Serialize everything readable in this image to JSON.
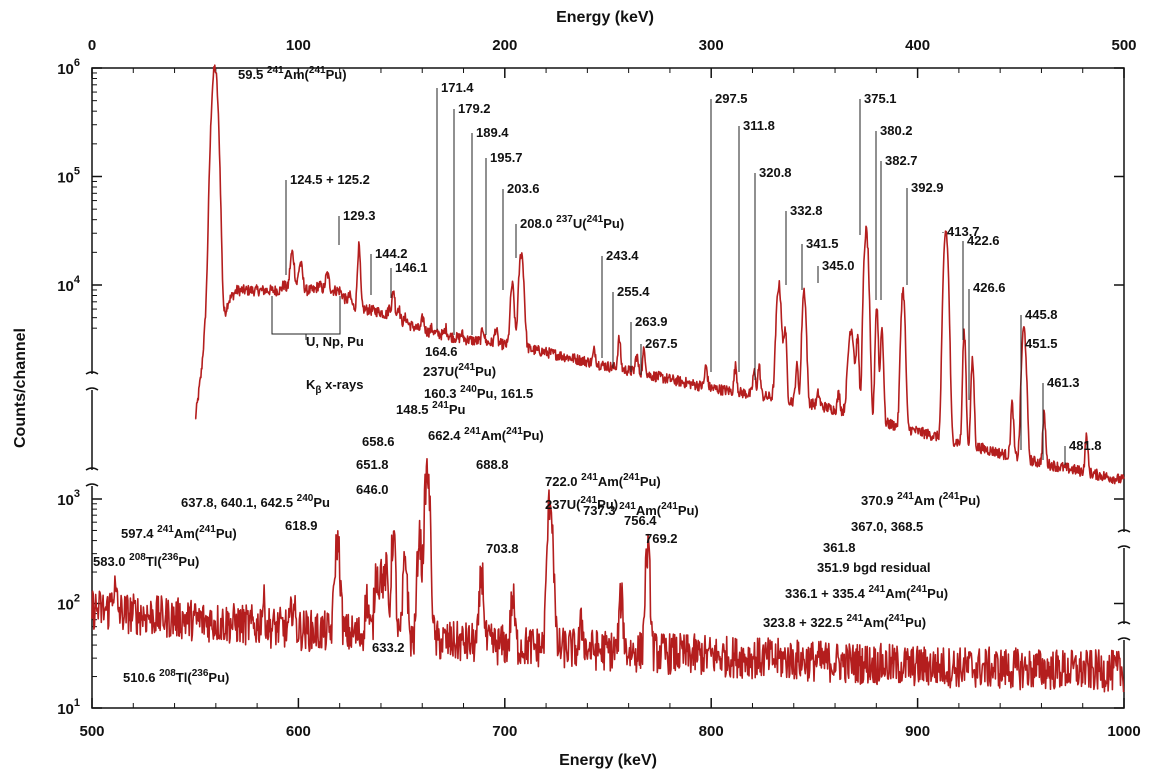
{
  "chart_data": {
    "type": "line",
    "title": "",
    "top_axis": {
      "label": "Energy (keV)",
      "range": [
        0,
        500
      ],
      "ticks": [
        {
          "v": 0,
          "t": "0"
        },
        {
          "v": 100,
          "t": "100"
        },
        {
          "v": 200,
          "t": "200"
        },
        {
          "v": 300,
          "t": "300"
        },
        {
          "v": 400,
          "t": "400"
        },
        {
          "v": 500,
          "t": "500"
        }
      ]
    },
    "bottom_axis": {
      "label": "Energy (keV)",
      "range": [
        500,
        1000
      ],
      "ticks": [
        {
          "v": 500,
          "t": "500"
        },
        {
          "v": 600,
          "t": "600"
        },
        {
          "v": 700,
          "t": "700"
        },
        {
          "v": 800,
          "t": "800"
        },
        {
          "v": 900,
          "t": "900"
        },
        {
          "v": 1000,
          "t": "1000"
        }
      ]
    },
    "ylabel": "Counts/channel",
    "y_scale": "log",
    "upper_y_ticks": [
      {
        "exp": 4,
        "t": "10",
        "sup": "4"
      },
      {
        "exp": 5,
        "t": "10",
        "sup": "5"
      },
      {
        "exp": 6,
        "t": "10",
        "sup": "6"
      }
    ],
    "lower_y_ticks": [
      {
        "exp": 1,
        "t": "10",
        "sup": "1"
      },
      {
        "exp": 2,
        "t": "10",
        "sup": "2"
      },
      {
        "exp": 3,
        "t": "10",
        "sup": "3"
      }
    ],
    "line_color": "#b41e1e",
    "series": [
      {
        "range": "0-500 keV",
        "continuum": [
          [
            50,
            2.75
          ],
          [
            53,
            3.2
          ],
          [
            56,
            3.9
          ],
          [
            58,
            4.7
          ],
          [
            60,
            3.7
          ],
          [
            62,
            3.55
          ],
          [
            66,
            3.85
          ],
          [
            70,
            3.95
          ],
          [
            75,
            3.95
          ],
          [
            80,
            3.95
          ],
          [
            90,
            3.95
          ],
          [
            100,
            3.95
          ],
          [
            120,
            3.95
          ],
          [
            125,
            3.8
          ],
          [
            140,
            3.75
          ],
          [
            160,
            3.58
          ],
          [
            180,
            3.5
          ],
          [
            200,
            3.45
          ],
          [
            220,
            3.38
          ],
          [
            250,
            3.25
          ],
          [
            300,
            3.05
          ],
          [
            350,
            2.9
          ],
          [
            400,
            2.65
          ],
          [
            450,
            2.4
          ],
          [
            500,
            2.2
          ]
        ],
        "peaks": [
          [
            59.5,
            6.0,
            1.2
          ],
          [
            93,
            4.0,
            0.8
          ],
          [
            97,
            4.3,
            0.9
          ],
          [
            101,
            4.2,
            0.9
          ],
          [
            106,
            3.9,
            0.7
          ],
          [
            110,
            4.0,
            1.0
          ],
          [
            114,
            4.1,
            0.8
          ],
          [
            118,
            3.9,
            0.8
          ],
          [
            124.8,
            3.9,
            0.8
          ],
          [
            129.3,
            4.35,
            0.6
          ],
          [
            144.2,
            3.8,
            0.6
          ],
          [
            146.1,
            3.95,
            0.6
          ],
          [
            148.5,
            3.8,
            0.6
          ],
          [
            152,
            3.7,
            0.6
          ],
          [
            160.3,
            3.7,
            0.6
          ],
          [
            164.6,
            3.6,
            0.6
          ],
          [
            171.4,
            3.6,
            0.6
          ],
          [
            179.2,
            3.55,
            0.6
          ],
          [
            189.4,
            3.6,
            0.6
          ],
          [
            195.7,
            3.6,
            0.6
          ],
          [
            203.6,
            4.0,
            0.8
          ],
          [
            208.0,
            4.3,
            1.0
          ],
          [
            243.4,
            3.4,
            0.6
          ],
          [
            255.4,
            3.5,
            0.6
          ],
          [
            263.9,
            3.35,
            0.6
          ],
          [
            267.5,
            3.4,
            0.6
          ],
          [
            297.5,
            3.25,
            0.6
          ],
          [
            311.8,
            3.25,
            0.6
          ],
          [
            320.8,
            3.2,
            0.6
          ],
          [
            323.2,
            3.25,
            0.6
          ],
          [
            332.8,
            4.0,
            1.0
          ],
          [
            335.8,
            3.6,
            0.6
          ],
          [
            341.5,
            3.25,
            0.6
          ],
          [
            345.0,
            3.95,
            0.8
          ],
          [
            351.9,
            3.0,
            0.6
          ],
          [
            361.8,
            3.0,
            0.6
          ],
          [
            367.8,
            3.6,
            1.2
          ],
          [
            370.9,
            3.5,
            0.6
          ],
          [
            375.1,
            4.5,
            0.9
          ],
          [
            380.2,
            3.8,
            0.6
          ],
          [
            382.7,
            3.6,
            0.6
          ],
          [
            392.9,
            3.95,
            0.8
          ],
          [
            413.7,
            4.5,
            0.9
          ],
          [
            422.6,
            3.55,
            0.6
          ],
          [
            426.6,
            3.3,
            0.6
          ],
          [
            445.8,
            2.9,
            0.6
          ],
          [
            451.5,
            3.6,
            0.9
          ],
          [
            461.3,
            2.8,
            0.6
          ],
          [
            481.8,
            2.6,
            0.6
          ]
        ],
        "noise_amplitude": 0.05
      },
      {
        "range": "500-1000 keV",
        "continuum": [
          [
            500,
            1.95
          ],
          [
            520,
            1.9
          ],
          [
            560,
            1.82
          ],
          [
            600,
            1.75
          ],
          [
            660,
            1.65
          ],
          [
            700,
            1.6
          ],
          [
            800,
            1.5
          ],
          [
            900,
            1.4
          ],
          [
            1000,
            1.35
          ]
        ],
        "peaks": [
          [
            510.6,
            2.15,
            1.0
          ],
          [
            583.0,
            2.0,
            0.8
          ],
          [
            597.4,
            2.0,
            0.8
          ],
          [
            618.9,
            2.6,
            1.0
          ],
          [
            633.2,
            2.05,
            0.8
          ],
          [
            637.8,
            2.3,
            0.8
          ],
          [
            640.1,
            2.3,
            0.8
          ],
          [
            642.5,
            2.3,
            0.8
          ],
          [
            646.0,
            2.65,
            0.8
          ],
          [
            651.8,
            2.45,
            0.8
          ],
          [
            658.6,
            2.65,
            0.8
          ],
          [
            662.4,
            3.25,
            1.0
          ],
          [
            688.8,
            2.3,
            0.8
          ],
          [
            703.8,
            2.05,
            0.8
          ],
          [
            722.0,
            3.0,
            1.0
          ],
          [
            737.3,
            1.8,
            0.8
          ],
          [
            756.4,
            2.05,
            0.8
          ],
          [
            769.2,
            2.5,
            0.9
          ]
        ],
        "noise_amplitude": 0.2
      }
    ],
    "annotations": [
      {
        "text": "59.5 ",
        "sup": "241",
        "rest": "Am(",
        "sup2": "241",
        "rest2": "Pu)",
        "panel": "top",
        "energy": 59.5
      },
      {
        "text": "124.5 + 125.2",
        "panel": "top",
        "energy": 124.8
      },
      {
        "text": "129.3",
        "panel": "top",
        "energy": 129.3
      },
      {
        "text": "144.2",
        "panel": "top",
        "energy": 144.2
      },
      {
        "text": "146.1",
        "panel": "top",
        "energy": 146.1
      },
      {
        "text": "171.4",
        "panel": "top",
        "energy": 171.4
      },
      {
        "text": "179.2",
        "panel": "top",
        "energy": 179.2
      },
      {
        "text": "189.4",
        "panel": "top",
        "energy": 189.4
      },
      {
        "text": "195.7",
        "panel": "top",
        "energy": 195.7
      },
      {
        "text": "203.6",
        "panel": "top",
        "energy": 203.6
      },
      {
        "text": "208.0 ",
        "sup": "237",
        "rest": "U(",
        "sup2": "241",
        "rest2": "Pu)",
        "panel": "top",
        "energy": 208.0
      },
      {
        "text": "243.4",
        "panel": "top",
        "energy": 243.4
      },
      {
        "text": "255.4",
        "panel": "top",
        "energy": 255.4
      },
      {
        "text": "263.9",
        "panel": "top",
        "energy": 263.9
      },
      {
        "text": "267.5",
        "panel": "top",
        "energy": 267.5
      },
      {
        "text": "297.5",
        "panel": "top",
        "energy": 297.5
      },
      {
        "text": "311.8",
        "panel": "top",
        "energy": 311.8
      },
      {
        "text": "320.8",
        "panel": "top",
        "energy": 320.8
      },
      {
        "text": "332.8",
        "panel": "top",
        "energy": 332.8
      },
      {
        "text": "341.5",
        "panel": "top",
        "energy": 341.5
      },
      {
        "text": "345.0",
        "panel": "top",
        "energy": 345.0
      },
      {
        "text": "375.1",
        "panel": "top",
        "energy": 375.1
      },
      {
        "text": "380.2",
        "panel": "top",
        "energy": 380.2
      },
      {
        "text": "382.7",
        "panel": "top",
        "energy": 382.7
      },
      {
        "text": "392.9",
        "panel": "top",
        "energy": 392.9
      },
      {
        "text": "413.7",
        "panel": "top",
        "energy": 413.7
      },
      {
        "text": "422.6",
        "panel": "top",
        "energy": 422.6
      },
      {
        "text": "426.6",
        "panel": "top",
        "energy": 426.6
      },
      {
        "text": "445.8",
        "panel": "top",
        "energy": 445.8
      },
      {
        "text": "451.5",
        "panel": "top",
        "energy": 451.5
      },
      {
        "text": "461.3",
        "panel": "top",
        "energy": 461.3
      },
      {
        "text": "481.8",
        "panel": "top",
        "energy": 481.8
      },
      {
        "text": "U, Np, Pu",
        "panel": "top",
        "energy": 105
      },
      {
        "text": "K",
        "sub": "β",
        "rest": " x-rays",
        "panel": "top",
        "energy": 105
      },
      {
        "text": "164.6",
        "panel": "top",
        "energy": 164.6
      },
      {
        "text": "237",
        "rest": "U(",
        "sup2": "241",
        "rest2": "Pu)",
        "panel": "top",
        "energy": 164.6
      },
      {
        "text": "160.3 ",
        "sup": "240",
        "rest": "Pu, 161.5",
        "panel": "top",
        "energy": 160.3
      },
      {
        "text": "148.5 ",
        "sup": "241",
        "rest": "Pu",
        "panel": "top",
        "energy": 148.5
      },
      {
        "text": "370.9  ",
        "sup": "241",
        "rest": "Am (",
        "sup2": "241",
        "rest2": "Pu)",
        "panel": "top",
        "energy": 370.9
      },
      {
        "text": "367.0, 368.5",
        "panel": "top",
        "energy": 367.8
      },
      {
        "text": "361.8",
        "panel": "top",
        "energy": 361.8
      },
      {
        "text": "351.9 bgd residual",
        "panel": "top",
        "energy": 351.9
      },
      {
        "text": "336.1 + 335.4  ",
        "sup": "241",
        "rest": "Am(",
        "sup2": "241",
        "rest2": "Pu)",
        "panel": "top",
        "energy": 335.8
      },
      {
        "text": "323.8 + 322.5  ",
        "sup": "241",
        "rest": "Am(",
        "sup2": "241",
        "rest2": "Pu)",
        "panel": "top",
        "energy": 323.2
      },
      {
        "text": "662.4 ",
        "sup": "241",
        "rest": "Am(",
        "sup2": "241",
        "rest2": "Pu)",
        "panel": "bottom",
        "energy": 662.4
      },
      {
        "text": "658.6",
        "panel": "bottom",
        "energy": 658.6
      },
      {
        "text": "651.8",
        "panel": "bottom",
        "energy": 651.8
      },
      {
        "text": "646.0",
        "panel": "bottom",
        "energy": 646.0
      },
      {
        "text": "637.8, 640.1, 642.5 ",
        "sup": "240",
        "rest": "Pu",
        "panel": "bottom",
        "energy": 640.1
      },
      {
        "text": "597.4 ",
        "sup": "241",
        "rest": "Am(",
        "sup2": "241",
        "rest2": "Pu)",
        "panel": "bottom",
        "energy": 597.4
      },
      {
        "text": "618.9",
        "panel": "bottom",
        "energy": 618.9
      },
      {
        "text": "583.0 ",
        "sup": "208",
        "rest": "Tl(",
        "sup2": "236",
        "rest2": "Pu)",
        "panel": "bottom",
        "energy": 583.0
      },
      {
        "text": "688.8",
        "panel": "bottom",
        "energy": 688.8
      },
      {
        "text": "703.8",
        "panel": "bottom",
        "energy": 703.8
      },
      {
        "text": "722.0 ",
        "sup": "241",
        "rest": "Am(",
        "sup2": "241",
        "rest2": "Pu)",
        "panel": "bottom",
        "energy": 722.0
      },
      {
        "text": "237",
        "rest": "U(",
        "sup2": "241",
        "rest2": "Pu)",
        "panel": "bottom",
        "energy": 722.0
      },
      {
        "text": "737.3 ",
        "sup": "241",
        "rest": "Am(",
        "sup2": "241",
        "rest2": "Pu)",
        "panel": "bottom",
        "energy": 737.3
      },
      {
        "text": "756.4",
        "panel": "bottom",
        "energy": 756.4
      },
      {
        "text": "769.2",
        "panel": "bottom",
        "energy": 769.2
      },
      {
        "text": "510.6 ",
        "sup": "208",
        "rest": "Tl(",
        "sup2": "236",
        "rest2": "Pu)",
        "panel": "bottom",
        "energy": 510.6
      },
      {
        "text": "633.2",
        "panel": "bottom",
        "energy": 633.2
      }
    ]
  }
}
